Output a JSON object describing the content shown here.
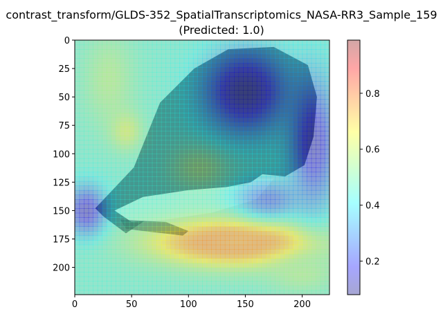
{
  "chart_data": {
    "type": "heatmap",
    "title_lines": [
      "contrast_transform/GLDS-352_SpatialTranscriptomics_NASA-RR3_Sample_159",
      "(Predicted: 1.0)"
    ],
    "xlabel": "",
    "ylabel": "",
    "xlim": [
      0,
      224
    ],
    "ylim": [
      224,
      0
    ],
    "x_ticks": [
      0,
      50,
      100,
      150,
      200
    ],
    "y_ticks": [
      0,
      25,
      50,
      75,
      100,
      125,
      150,
      175,
      200
    ],
    "colorbar": {
      "range": [
        0.08,
        0.99
      ],
      "ticks": [
        0.2,
        0.4,
        0.6,
        0.8
      ],
      "tick_labels": [
        "0.2",
        "0.4",
        "0.6",
        "0.8"
      ],
      "colormap": "jet",
      "alpha": 0.35
    },
    "background_color": "#cfd8c4",
    "tissue_color": "#2f3a48",
    "hotspots": [
      {
        "x": 140,
        "y": 178,
        "value": 0.98,
        "sx": 36,
        "sy": 9
      },
      {
        "x": 140,
        "y": 178,
        "value": 0.75,
        "sx": 52,
        "sy": 16
      },
      {
        "x": 110,
        "y": 112,
        "value": 0.55,
        "sx": 18,
        "sy": 14
      },
      {
        "x": 30,
        "y": 35,
        "value": 0.55,
        "sx": 16,
        "sy": 30
      },
      {
        "x": 200,
        "y": 205,
        "value": 0.55,
        "sx": 20,
        "sy": 12
      },
      {
        "x": 45,
        "y": 80,
        "value": 0.6,
        "sx": 10,
        "sy": 12
      }
    ],
    "coldspots": [
      {
        "x": 150,
        "y": 45,
        "value": 0.1,
        "sx": 25,
        "sy": 25
      },
      {
        "x": 210,
        "y": 90,
        "value": 0.15,
        "sx": 14,
        "sy": 40
      },
      {
        "x": 10,
        "y": 150,
        "value": 0.15,
        "sx": 12,
        "sy": 15
      },
      {
        "x": 170,
        "y": 140,
        "value": 0.25,
        "sx": 20,
        "sy": 12
      }
    ]
  }
}
